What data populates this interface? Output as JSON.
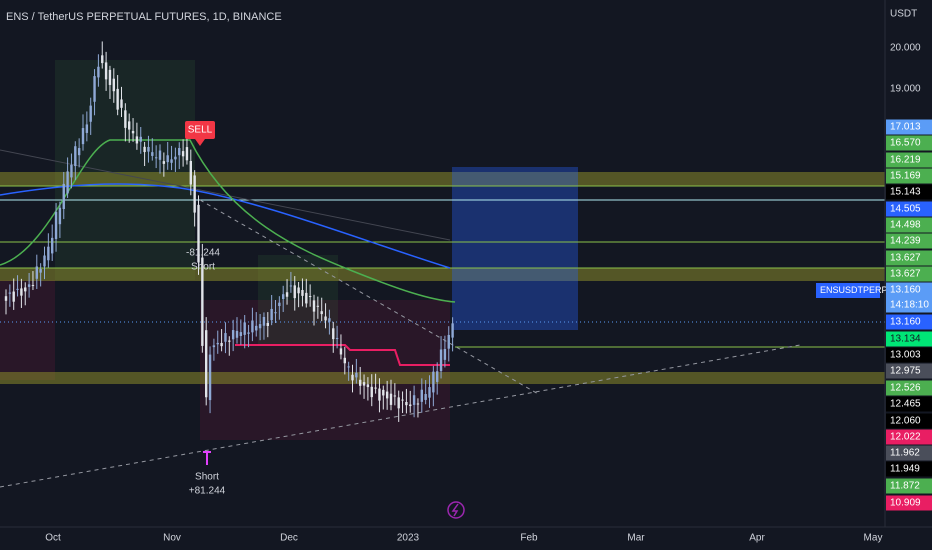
{
  "header": {
    "title": "ENS / TetherUS PERPETUAL FUTURES, 1D, BINANCE"
  },
  "price_axis": {
    "unit": "USDT",
    "labels": [
      {
        "text": "20.000"
      },
      {
        "text": "19.000"
      },
      {
        "text": "17.013",
        "color": "#5b9cf6"
      },
      {
        "text": "16.570",
        "color": "#4caf50"
      },
      {
        "text": "16.219",
        "color": "#4caf50"
      },
      {
        "text": "15.169",
        "color": "#4caf50"
      },
      {
        "text": "15.143",
        "color": "#000000"
      },
      {
        "text": "14.505",
        "color": "#2962ff"
      },
      {
        "text": "14.498",
        "color": "#4caf50"
      },
      {
        "text": "14.239",
        "color": "#4caf50"
      },
      {
        "text": "13.627",
        "color": "#4caf50"
      },
      {
        "text": "13.627",
        "color": "#4caf50"
      },
      {
        "text": "13.160",
        "color": "#5b9cf6"
      },
      {
        "text": "13.160",
        "color": "#2962ff"
      },
      {
        "text": "13.134",
        "color": "#00e676"
      },
      {
        "text": "13.003",
        "color": "#000000"
      },
      {
        "text": "12.975",
        "color": "#4a4e5a"
      },
      {
        "text": "12.526",
        "color": "#4caf50"
      },
      {
        "text": "12.465",
        "color": "#000000"
      },
      {
        "text": "12.060",
        "color": "#000000"
      },
      {
        "text": "12.022",
        "color": "#e91e63"
      },
      {
        "text": "11.962",
        "color": "#4a4e5a"
      },
      {
        "text": "11.949",
        "color": "#000000"
      },
      {
        "text": "11.872",
        "color": "#4caf50"
      },
      {
        "text": "10.909",
        "color": "#e91e63"
      }
    ],
    "symbol_label": "ENSUSDTPERP",
    "countdown": "14:18:10"
  },
  "time_axis": {
    "labels": [
      "Oct",
      "Nov",
      "Dec",
      "2023",
      "Feb",
      "Mar",
      "Apr",
      "May"
    ]
  },
  "annotations": {
    "sell": "SELL",
    "short_top_value": "-81.244",
    "short_top": "Short",
    "short_bottom": "Short",
    "short_bottom_value": "+81.244"
  }
}
